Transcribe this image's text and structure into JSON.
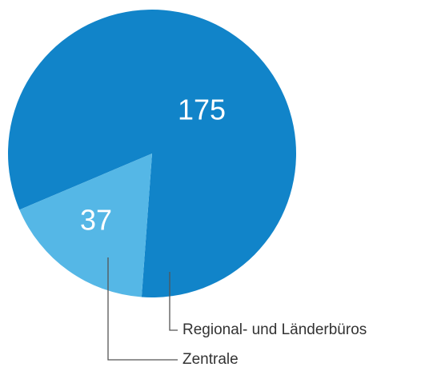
{
  "chart_data": {
    "type": "pie",
    "categories": [
      "Regional- und Länderbüros",
      "Zentrale"
    ],
    "values": [
      175,
      37
    ],
    "colors": [
      "#1184c9",
      "#55b7e6"
    ]
  }
}
